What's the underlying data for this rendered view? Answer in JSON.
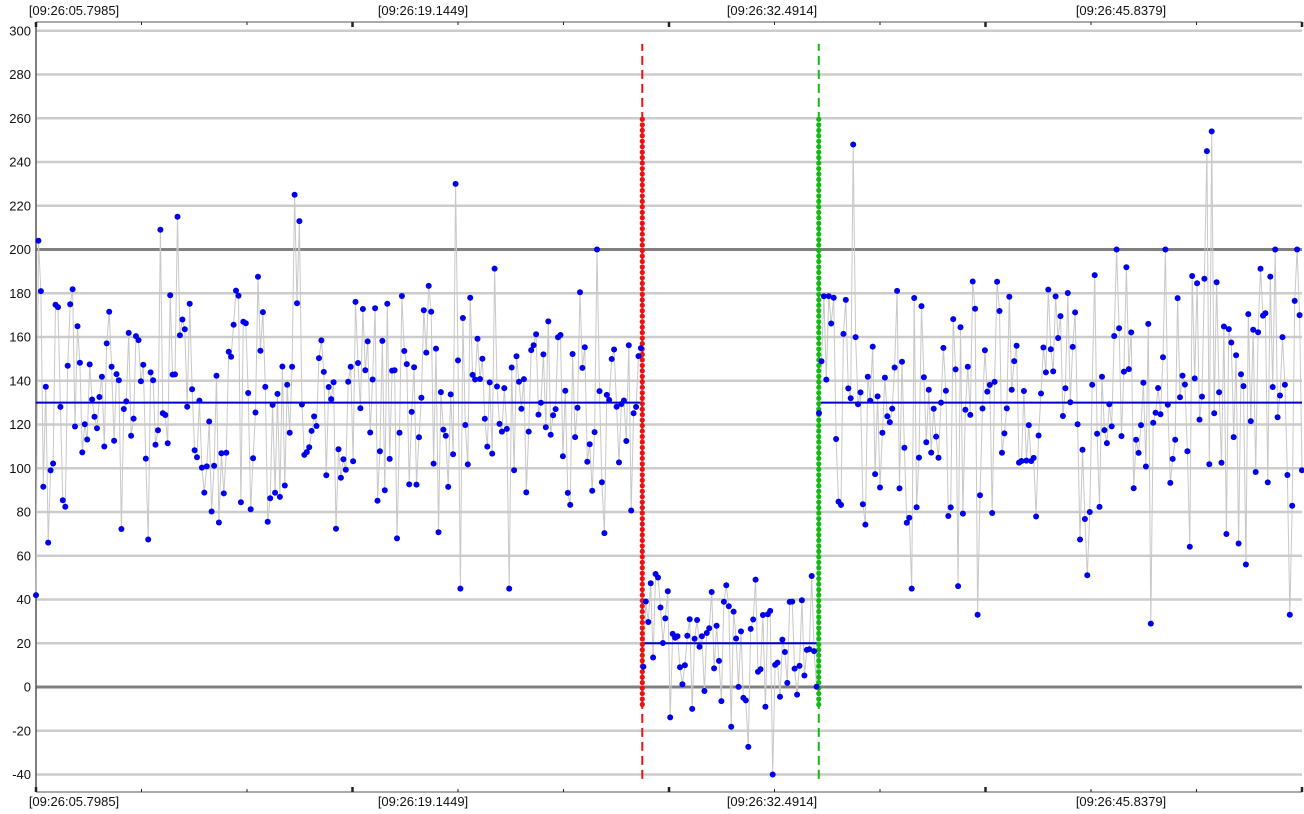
{
  "chart_data": {
    "type": "scatter",
    "title": "",
    "xlabel": "",
    "ylabel": "",
    "ylim": [
      -48,
      304
    ],
    "yticks": [
      -40,
      -20,
      0,
      20,
      40,
      60,
      80,
      100,
      120,
      140,
      160,
      180,
      200,
      220,
      240,
      260,
      280,
      300
    ],
    "major_grid_y": [
      0,
      200
    ],
    "grid": true,
    "time_labels": [
      "[09:26:05.7985]",
      "[09:26:19.1449]",
      "[09:26:32.4914]",
      "[09:26:45.8379]"
    ],
    "colors": {
      "points": "#0000ee",
      "connector": "#c8c8c8",
      "mean_line": "#0000cc",
      "marker_start": "#ee1111",
      "marker_end": "#11bb11",
      "grid_minor": "#cccccc",
      "grid_major": "#808080"
    },
    "segments": [
      {
        "mean": 130,
        "x_range": [
          0,
          0.4789
        ]
      },
      {
        "mean": 20,
        "x_range": [
          0.4789,
          0.6183
        ]
      },
      {
        "mean": 130,
        "x_range": [
          0.6183,
          1.0
        ]
      }
    ],
    "markers": [
      {
        "x": 0.4789,
        "y_range": [
          -42,
          294
        ],
        "color": "marker_start"
      },
      {
        "x": 0.6183,
        "y_range": [
          -42,
          294
        ],
        "color": "marker_end"
      }
    ],
    "point_count": 520,
    "seed": 12345,
    "highlight_points": [
      {
        "x": 0.0,
        "y": 42
      },
      {
        "x": 0.001,
        "y": 204
      },
      {
        "x": 0.0048,
        "y": 181
      },
      {
        "x": 0.0087,
        "y": 66
      },
      {
        "x": 0.0119,
        "y": 99
      },
      {
        "x": 0.2048,
        "y": 225
      },
      {
        "x": 0.2087,
        "y": 213
      },
      {
        "x": 0.332,
        "y": 230
      },
      {
        "x": 0.6449,
        "y": 248
      },
      {
        "x": 0.5816,
        "y": -40
      },
      {
        "x": 0.9283,
        "y": 254
      },
      {
        "x": 0.9252,
        "y": 245
      },
      {
        "x": 0.8812,
        "y": 29
      },
      {
        "x": 0.7439,
        "y": 33
      },
      {
        "x": 0.9913,
        "y": 33
      },
      {
        "x": 0.9983,
        "y": 170
      },
      {
        "x": 0.1108,
        "y": 215
      },
      {
        "x": 0.0988,
        "y": 209
      }
    ]
  }
}
